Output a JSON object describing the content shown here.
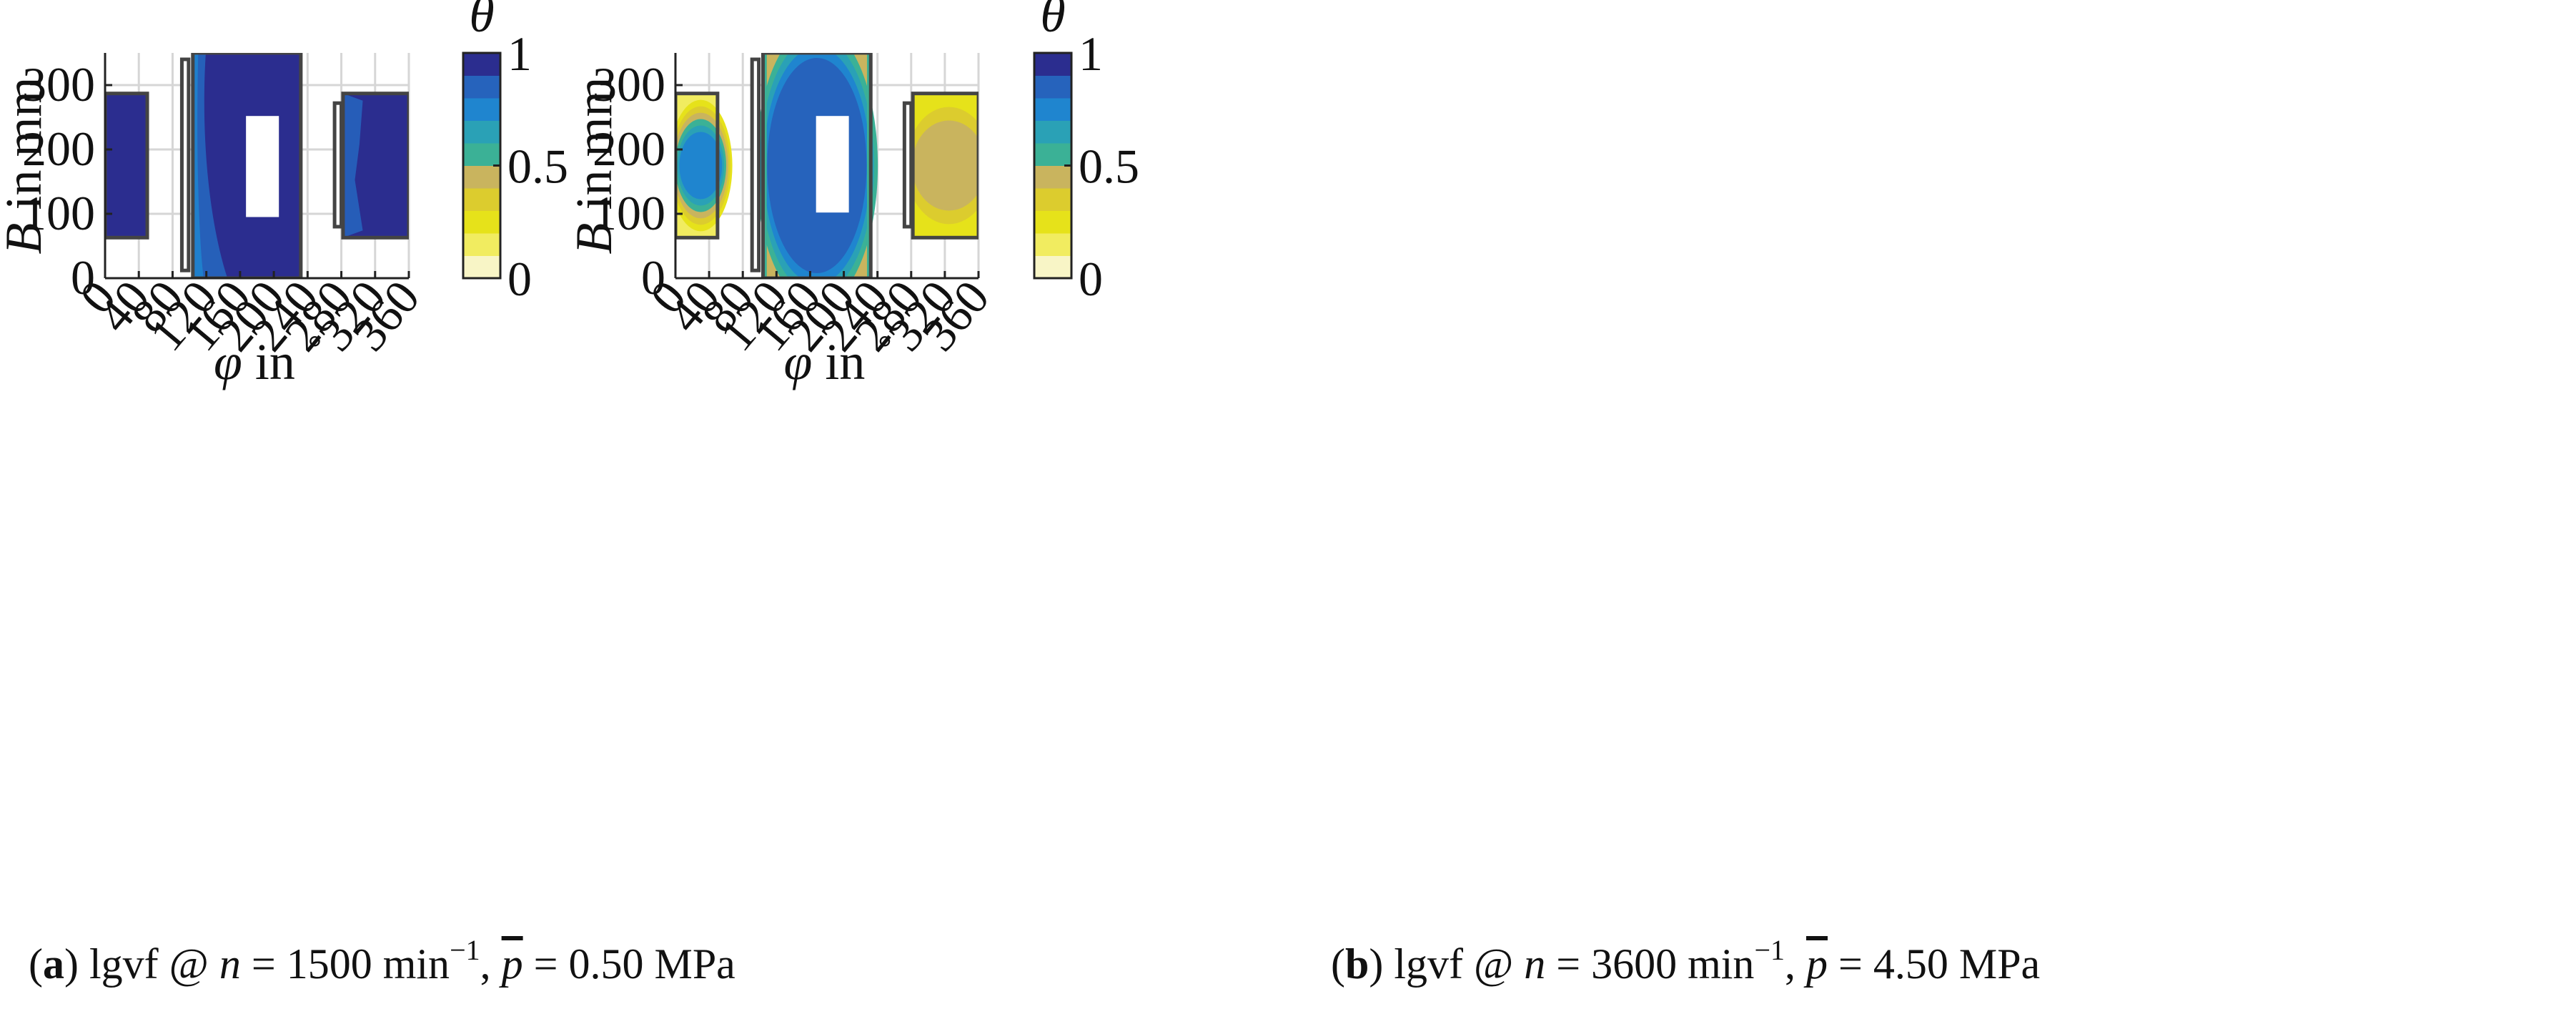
{
  "chart_data": [
    {
      "type": "contour",
      "id": "a",
      "caption": {
        "label": "a",
        "text": "lgvf @ n = 1500 min−1, p̄ = 0.50 MPa",
        "parts": {
          "open": "(",
          "letter": "a",
          "close": ")",
          "lgvf": " lgvf @ ",
          "n": "n",
          "eq1": " = 1500 min",
          "exp": "−1",
          "comma": ", ",
          "p": "p",
          "eq2": " = 0.50 MPa"
        }
      },
      "xlabel": {
        "symbol": "φ",
        "text": " in ",
        "unit": "°"
      },
      "ylabel": {
        "symbol": "B",
        "text": " in mm"
      },
      "xlim": [
        0,
        360
      ],
      "ylim": [
        0,
        350
      ],
      "xticks": [
        "0",
        "40",
        "80",
        "120",
        "160",
        "200",
        "240",
        "280",
        "320",
        "360"
      ],
      "yticks": [
        "0",
        "100",
        "200",
        "300"
      ],
      "grid": true,
      "colorbar": {
        "title": "θ",
        "levels": 10,
        "ticks": [
          "0",
          "0.5",
          "1"
        ]
      },
      "pads": [
        {
          "name": "pad-left",
          "x": [
            0,
            50
          ],
          "y": [
            63,
            287
          ],
          "fill_level": 10
        },
        {
          "name": "pad-center",
          "x": [
            104,
            232
          ],
          "y": [
            0,
            350
          ],
          "fill_level": 10,
          "edge_level": 9,
          "hole": {
            "x": [
              167,
              206
            ],
            "y": [
              95,
              252
            ]
          }
        },
        {
          "name": "pad-right",
          "x": [
            282,
            360
          ],
          "y": [
            63,
            287
          ],
          "fill_level": 10,
          "edge_level": 9
        }
      ],
      "grooves": [
        {
          "name": "groove-left",
          "x": [
            91,
            99
          ],
          "y": [
            12,
            340
          ]
        },
        {
          "name": "groove-right",
          "x": [
            272,
            280
          ],
          "y": [
            80,
            272
          ]
        }
      ]
    },
    {
      "type": "contour",
      "id": "b",
      "caption": {
        "label": "b",
        "text": "lgvf @ n = 3600 min−1, p̄ = 4.50 MPa",
        "parts": {
          "open": "(",
          "letter": "b",
          "close": ")",
          "lgvf": " lgvf @ ",
          "n": "n",
          "eq1": " = 3600 min",
          "exp": "−1",
          "comma": ", ",
          "p": "p",
          "eq2": " = 4.50 MPa"
        }
      },
      "xlabel": {
        "symbol": "φ",
        "text": " in ",
        "unit": "°"
      },
      "ylabel": {
        "symbol": "B",
        "text": " in mm"
      },
      "xlim": [
        0,
        360
      ],
      "ylim": [
        0,
        350
      ],
      "xticks": [
        "0",
        "40",
        "80",
        "120",
        "160",
        "200",
        "240",
        "280",
        "320",
        "360"
      ],
      "yticks": [
        "0",
        "100",
        "200",
        "300"
      ],
      "grid": true,
      "colorbar": {
        "title": "θ",
        "levels": 10,
        "ticks": [
          "0",
          "0.5",
          "1"
        ]
      },
      "pads": [
        {
          "name": "pad-left",
          "x": [
            0,
            50
          ],
          "y": [
            63,
            287
          ],
          "edge_level": 2,
          "core_level": 8
        },
        {
          "name": "pad-center",
          "x": [
            104,
            232
          ],
          "y": [
            0,
            350
          ],
          "edge_level": 5,
          "core_level": 9,
          "hole": {
            "x": [
              167,
              206
            ],
            "y": [
              102,
              252
            ]
          }
        },
        {
          "name": "pad-right",
          "x": [
            282,
            360
          ],
          "y": [
            63,
            287
          ],
          "edge_level": 3,
          "core_level": 5
        }
      ],
      "grooves": [
        {
          "name": "groove-left",
          "x": [
            91,
            99
          ],
          "y": [
            12,
            340
          ]
        },
        {
          "name": "groove-right",
          "x": [
            272,
            280
          ],
          "y": [
            80,
            272
          ]
        }
      ]
    }
  ],
  "palette": {
    "levels": [
      "#f8f5c6",
      "#f1ec60",
      "#e6e21a",
      "#dccc2e",
      "#c9b45e",
      "#3bb196",
      "#2aa1b6",
      "#1f85cf",
      "#2663bc",
      "#2b2d8f"
    ],
    "frame": "#444444",
    "grid": "#d6d6d6",
    "axis": "#222222"
  }
}
